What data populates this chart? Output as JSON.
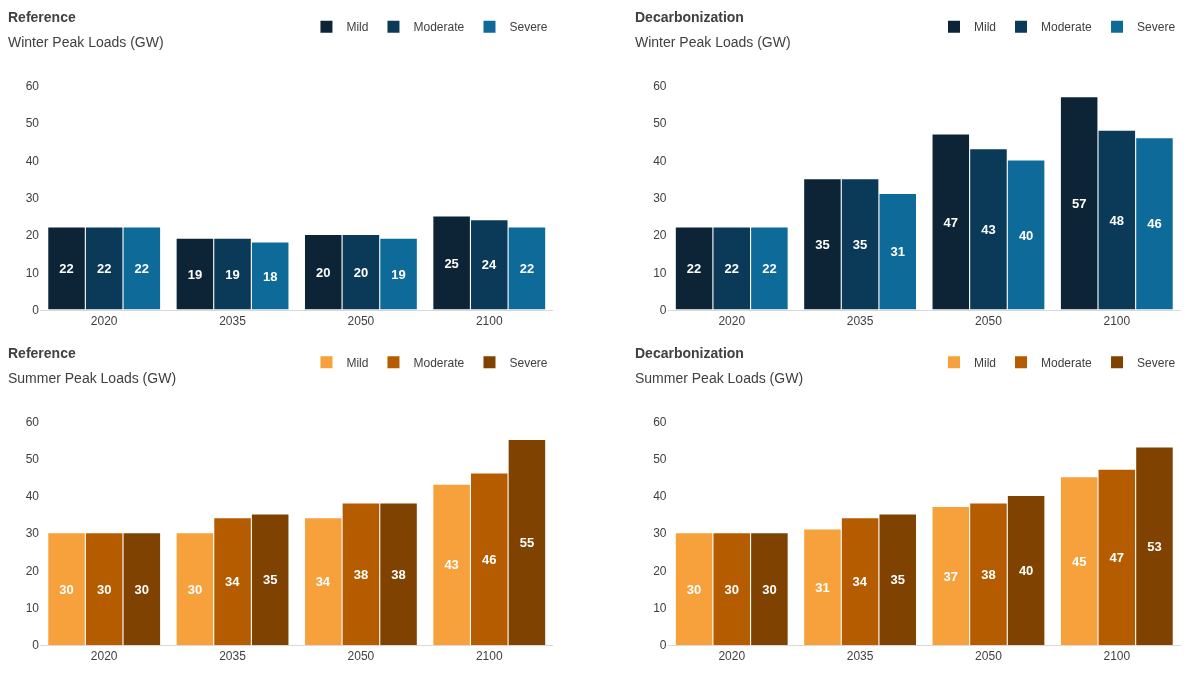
{
  "chart_data": [
    {
      "type": "bar",
      "title": "Reference",
      "subtitle": "Winter Peak Loads (GW)",
      "categories": [
        "2020",
        "2035",
        "2050",
        "2100"
      ],
      "series": [
        {
          "name": "Mild",
          "color": "#0d2436",
          "values": [
            22,
            19,
            20,
            25
          ]
        },
        {
          "name": "Moderate",
          "color": "#0a3a57",
          "values": [
            22,
            19,
            20,
            24
          ]
        },
        {
          "name": "Severe",
          "color": "#0e6a98",
          "values": [
            22,
            18,
            19,
            22
          ]
        }
      ],
      "ylim": [
        0,
        60
      ],
      "yticks": [
        0,
        10,
        20,
        30,
        40,
        50,
        60
      ],
      "data_labels": true,
      "legend": "top right",
      "grid": false
    },
    {
      "type": "bar",
      "title": "Decarbonization",
      "subtitle": "Winter Peak Loads (GW)",
      "categories": [
        "2020",
        "2035",
        "2050",
        "2100"
      ],
      "series": [
        {
          "name": "Mild",
          "color": "#0d2436",
          "values": [
            22,
            35,
            47,
            57
          ]
        },
        {
          "name": "Moderate",
          "color": "#0a3a57",
          "values": [
            22,
            35,
            43,
            48
          ]
        },
        {
          "name": "Severe",
          "color": "#0e6a98",
          "values": [
            22,
            31,
            40,
            46
          ]
        }
      ],
      "ylim": [
        0,
        60
      ],
      "yticks": [
        0,
        10,
        20,
        30,
        40,
        50,
        60
      ],
      "data_labels": true,
      "legend": "top right",
      "grid": false
    },
    {
      "type": "bar",
      "title": "Reference",
      "subtitle": "Summer Peak Loads (GW)",
      "categories": [
        "2020",
        "2035",
        "2050",
        "2100"
      ],
      "series": [
        {
          "name": "Mild",
          "color": "#f6a13b",
          "values": [
            30,
            30,
            34,
            43
          ]
        },
        {
          "name": "Moderate",
          "color": "#b55c00",
          "values": [
            30,
            34,
            38,
            46
          ]
        },
        {
          "name": "Severe",
          "color": "#7f4200",
          "values": [
            30,
            35,
            38,
            55
          ]
        }
      ],
      "ylim": [
        0,
        60
      ],
      "yticks": [
        0,
        10,
        20,
        30,
        40,
        50,
        60
      ],
      "data_labels": true,
      "legend": "top right",
      "grid": false
    },
    {
      "type": "bar",
      "title": "Decarbonization",
      "subtitle": "Summer Peak Loads (GW)",
      "categories": [
        "2020",
        "2035",
        "2050",
        "2100"
      ],
      "series": [
        {
          "name": "Mild",
          "color": "#f6a13b",
          "values": [
            30,
            31,
            37,
            45
          ]
        },
        {
          "name": "Moderate",
          "color": "#b55c00",
          "values": [
            30,
            34,
            38,
            47
          ]
        },
        {
          "name": "Severe",
          "color": "#7f4200",
          "values": [
            30,
            35,
            40,
            53
          ]
        }
      ],
      "ylim": [
        0,
        60
      ],
      "yticks": [
        0,
        10,
        20,
        30,
        40,
        50,
        60
      ],
      "data_labels": true,
      "legend": "top right",
      "grid": false
    }
  ]
}
